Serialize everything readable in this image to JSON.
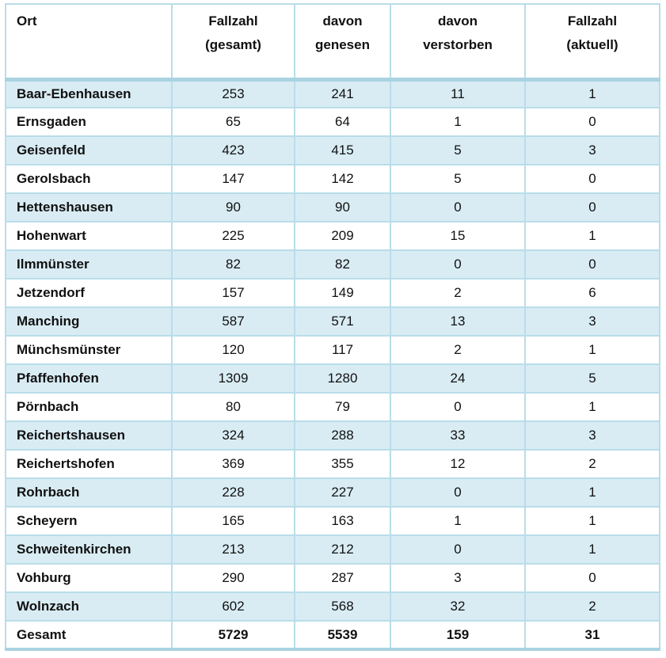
{
  "colors": {
    "row_fill": "#d9ecf4",
    "grid_border": "#b9dde9",
    "header_band": "#a9d3e1",
    "text": "#111111"
  },
  "table": {
    "header": {
      "ort": {
        "line1": "",
        "line2": "Ort"
      },
      "cols": [
        {
          "line1": "Fallzahl",
          "line2": "(gesamt)"
        },
        {
          "line1": "davon",
          "line2": "genesen"
        },
        {
          "line1": "davon",
          "line2": "verstorben"
        },
        {
          "line1": "Fallzahl",
          "line2": "(aktuell)"
        }
      ]
    },
    "rows": [
      {
        "ort": "Baar-Ebenhausen",
        "gesamt": "253",
        "genesen": "241",
        "verstorben": "11",
        "aktuell": "1"
      },
      {
        "ort": "Ernsgaden",
        "gesamt": "65",
        "genesen": "64",
        "verstorben": "1",
        "aktuell": "0"
      },
      {
        "ort": "Geisenfeld",
        "gesamt": "423",
        "genesen": "415",
        "verstorben": "5",
        "aktuell": "3"
      },
      {
        "ort": "Gerolsbach",
        "gesamt": "147",
        "genesen": "142",
        "verstorben": "5",
        "aktuell": "0"
      },
      {
        "ort": "Hettenshausen",
        "gesamt": "90",
        "genesen": "90",
        "verstorben": "0",
        "aktuell": "0"
      },
      {
        "ort": "Hohenwart",
        "gesamt": "225",
        "genesen": "209",
        "verstorben": "15",
        "aktuell": "1"
      },
      {
        "ort": "Ilmmünster",
        "gesamt": "82",
        "genesen": "82",
        "verstorben": "0",
        "aktuell": "0"
      },
      {
        "ort": "Jetzendorf",
        "gesamt": "157",
        "genesen": "149",
        "verstorben": "2",
        "aktuell": "6"
      },
      {
        "ort": "Manching",
        "gesamt": "587",
        "genesen": "571",
        "verstorben": "13",
        "aktuell": "3"
      },
      {
        "ort": "Münchsmünster",
        "gesamt": "120",
        "genesen": "117",
        "verstorben": "2",
        "aktuell": "1"
      },
      {
        "ort": "Pfaffenhofen",
        "gesamt": "1309",
        "genesen": "1280",
        "verstorben": "24",
        "aktuell": "5"
      },
      {
        "ort": "Pörnbach",
        "gesamt": "80",
        "genesen": "79",
        "verstorben": "0",
        "aktuell": "1"
      },
      {
        "ort": "Reichertshausen",
        "gesamt": "324",
        "genesen": "288",
        "verstorben": "33",
        "aktuell": "3"
      },
      {
        "ort": "Reichertshofen",
        "gesamt": "369",
        "genesen": "355",
        "verstorben": "12",
        "aktuell": "2"
      },
      {
        "ort": "Rohrbach",
        "gesamt": "228",
        "genesen": "227",
        "verstorben": "0",
        "aktuell": "1"
      },
      {
        "ort": "Scheyern",
        "gesamt": "165",
        "genesen": "163",
        "verstorben": "1",
        "aktuell": "1"
      },
      {
        "ort": "Schweitenkirchen",
        "gesamt": "213",
        "genesen": "212",
        "verstorben": "0",
        "aktuell": "1"
      },
      {
        "ort": "Vohburg",
        "gesamt": "290",
        "genesen": "287",
        "verstorben": "3",
        "aktuell": "0"
      },
      {
        "ort": "Wolnzach",
        "gesamt": "602",
        "genesen": "568",
        "verstorben": "32",
        "aktuell": "2"
      }
    ],
    "total": {
      "ort": "Gesamt",
      "gesamt": "5729",
      "genesen": "5539",
      "verstorben": "159",
      "aktuell": "31"
    }
  }
}
